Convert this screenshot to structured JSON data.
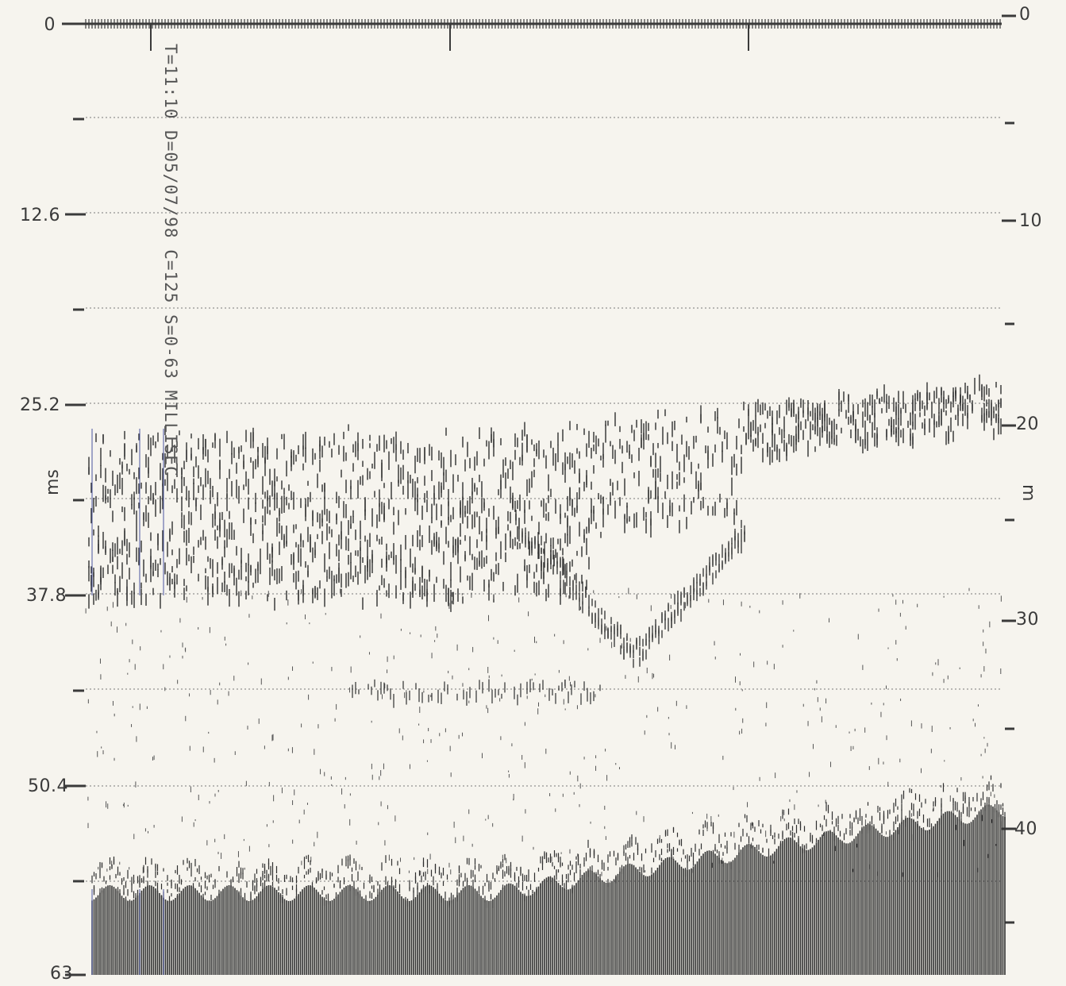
{
  "left_axis": {
    "unit": "ms",
    "labels": [
      "0",
      "12.6",
      "25.2",
      "37.8",
      "50.4",
      "63"
    ]
  },
  "right_axis": {
    "unit": "m",
    "labels": [
      "0",
      "10",
      "20",
      "30",
      "40"
    ]
  },
  "annotation": "T=11:10 D=05/07/98 C=125 S=0-63 MILLISEC",
  "colors": {
    "paper": "#f6f4ee",
    "ink": "#3a3a3a",
    "echo": "#2f2f2f",
    "marker": "#4a55a0"
  }
}
